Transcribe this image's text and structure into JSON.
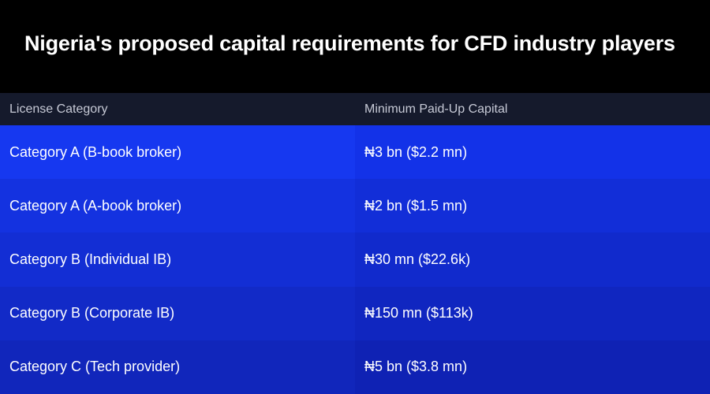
{
  "title": "Nigeria's proposed capital requirements for CFD industry players",
  "table": {
    "headers": [
      "License Category",
      "Minimum Paid-Up Capital"
    ],
    "rows": [
      {
        "category": "Category A (B-book broker)",
        "capital": "₦3 bn ($2.2 mn)"
      },
      {
        "category": "Category A (A-book broker)",
        "capital": "₦2 bn ($1.5 mn)"
      },
      {
        "category": "Category B (Individual IB)",
        "capital": "₦30 mn ($22.6k)"
      },
      {
        "category": "Category B (Corporate IB)",
        "capital": "₦150 mn ($113k)"
      },
      {
        "category": "Category C (Tech provider)",
        "capital": "₦5 bn ($3.8 mn)"
      }
    ]
  },
  "colors": {
    "background": "#000000",
    "header_row": "#151a2c",
    "header_text": "#c7cad6",
    "cell_text": "#ffffff",
    "rows_left": [
      "#1638f0",
      "#1432e0",
      "#132ed4",
      "#122ac7",
      "#1126bb"
    ],
    "rows_right": [
      "#1332e8",
      "#122ed8",
      "#112acc",
      "#1026c0",
      "#0f22b4"
    ]
  }
}
